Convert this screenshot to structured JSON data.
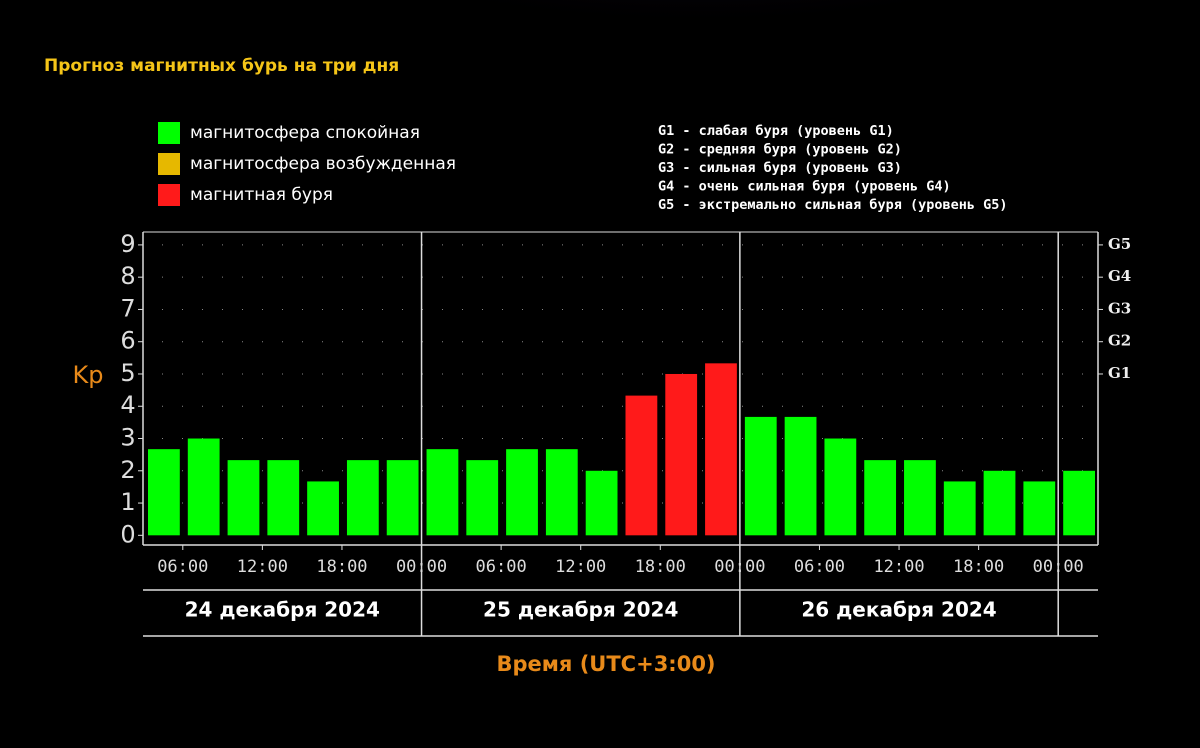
{
  "chart_data": {
    "type": "bar",
    "title": "Прогноз магнитных бурь на три дня",
    "y_label": "Kp",
    "x_label": "Время (UTC+3:00)",
    "legend": [
      {
        "label": "магнитосфера спокойная",
        "color": "#00ff00"
      },
      {
        "label": "магнитосфера возбужденная",
        "color": "#e6b800"
      },
      {
        "label": "магнитная буря",
        "color": "#ff1a1a"
      }
    ],
    "notes": [
      "G1 - слабая буря (уровень G1)",
      "G2 - средняя буря (уровень G2)",
      "G3 - сильная буря (уровень G3)",
      "G4 - очень сильная буря (уровень G4)",
      "G5 - экстремально сильная буря (уровень G5)"
    ],
    "values": [
      2.67,
      3,
      2.33,
      2.33,
      1.67,
      2.33,
      2.33,
      2.67,
      2.33,
      2.67,
      2.67,
      2,
      4.33,
      5,
      5.33,
      3.67,
      3.67,
      3,
      2.33,
      2.33,
      1.67,
      2,
      1.67,
      2
    ],
    "colors": [
      "#00ff00",
      "#00ff00",
      "#00ff00",
      "#00ff00",
      "#00ff00",
      "#00ff00",
      "#00ff00",
      "#00ff00",
      "#00ff00",
      "#00ff00",
      "#00ff00",
      "#00ff00",
      "#ff1a1a",
      "#ff1a1a",
      "#ff1a1a",
      "#00ff00",
      "#00ff00",
      "#00ff00",
      "#00ff00",
      "#00ff00",
      "#00ff00",
      "#00ff00",
      "#00ff00",
      "#00ff00"
    ],
    "x_tick_labels": [
      "06:00",
      "12:00",
      "18:00",
      "00:00",
      "06:00",
      "12:00",
      "18:00",
      "00:00",
      "06:00",
      "12:00",
      "18:00",
      "00:00"
    ],
    "days": [
      "24 декабря 2024",
      "25 декабря 2024",
      "26 декабря 2024"
    ],
    "ylim": [
      -0.3,
      9.4
    ],
    "yticks": [
      0,
      1,
      2,
      3,
      4,
      5,
      6,
      7,
      8,
      9
    ],
    "y2ticks": [
      {
        "value": 5,
        "label": "G1"
      },
      {
        "value": 6,
        "label": "G2"
      },
      {
        "value": 7,
        "label": "G3"
      },
      {
        "value": 8,
        "label": "G4"
      },
      {
        "value": 9,
        "label": "G5"
      }
    ],
    "grid": true
  }
}
